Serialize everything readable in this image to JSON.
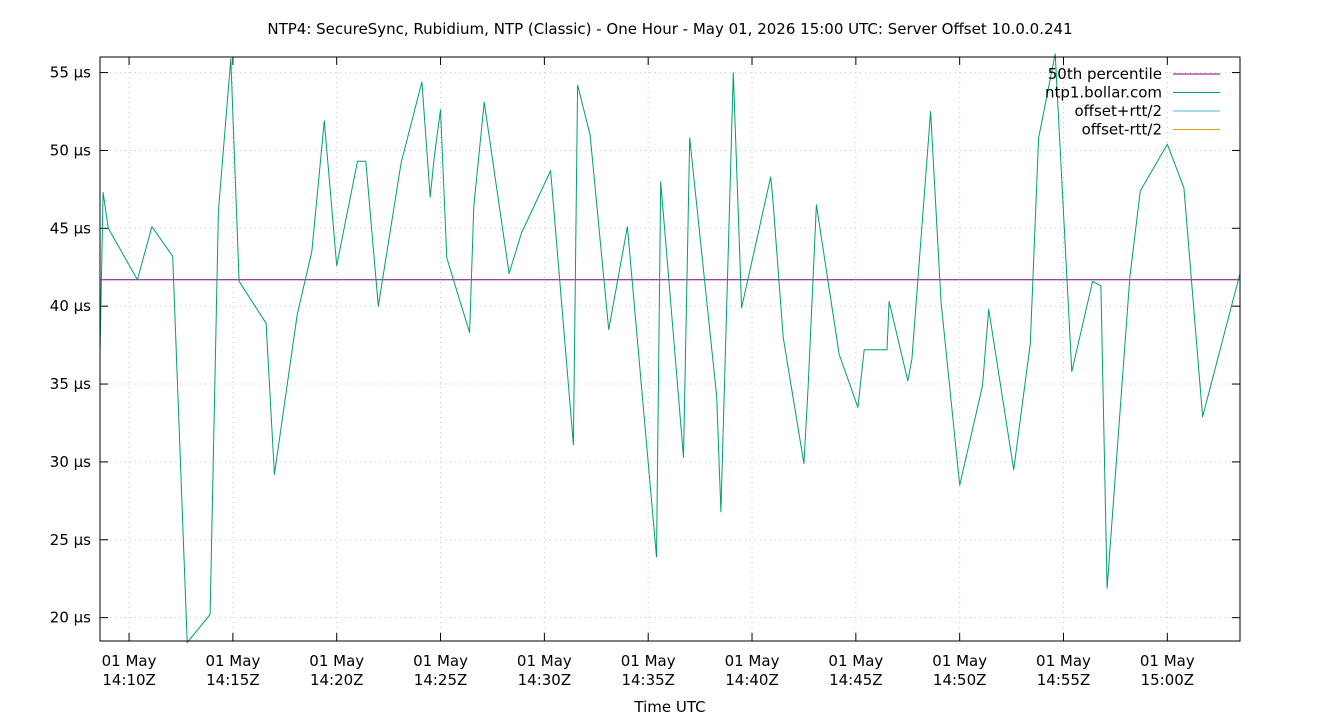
{
  "chart_data": {
    "type": "line",
    "title": "NTP4: SecureSync, Rubidium, NTP (Classic) - One Hour - May 01, 2026 15:00 UTC: Server Offset 10.0.0.241",
    "xlabel": "Time UTC",
    "ylabel": "",
    "x_unit": "minutes after 14:00Z",
    "xlim": [
      8.6,
      63.5
    ],
    "ylim": [
      18.5,
      56.0
    ],
    "grid": true,
    "legend_position": "top-right",
    "y_ticks": [
      {
        "value": 20,
        "label": "20 µs"
      },
      {
        "value": 25,
        "label": "25 µs"
      },
      {
        "value": 30,
        "label": "30 µs"
      },
      {
        "value": 35,
        "label": "35 µs"
      },
      {
        "value": 40,
        "label": "40 µs"
      },
      {
        "value": 45,
        "label": "45 µs"
      },
      {
        "value": 50,
        "label": "50 µs"
      },
      {
        "value": 55,
        "label": "55 µs"
      }
    ],
    "x_ticks": [
      {
        "value": 10,
        "date": "01 May",
        "time": "14:10Z"
      },
      {
        "value": 15,
        "date": "01 May",
        "time": "14:15Z"
      },
      {
        "value": 20,
        "date": "01 May",
        "time": "14:20Z"
      },
      {
        "value": 25,
        "date": "01 May",
        "time": "14:25Z"
      },
      {
        "value": 30,
        "date": "01 May",
        "time": "14:30Z"
      },
      {
        "value": 35,
        "date": "01 May",
        "time": "14:35Z"
      },
      {
        "value": 40,
        "date": "01 May",
        "time": "14:40Z"
      },
      {
        "value": 45,
        "date": "01 May",
        "time": "14:45Z"
      },
      {
        "value": 50,
        "date": "01 May",
        "time": "14:50Z"
      },
      {
        "value": 55,
        "date": "01 May",
        "time": "14:55Z"
      },
      {
        "value": 60,
        "date": "01 May",
        "time": "15:00Z"
      }
    ],
    "series": [
      {
        "name": "50th percentile",
        "color": "#800080",
        "x": [
          8.6,
          63.5
        ],
        "y": [
          41.7,
          41.7
        ]
      },
      {
        "name": "ntp1.bollar.com",
        "color": "#009e73",
        "x": [
          8.6,
          8.75,
          9.0,
          10.4,
          11.1,
          12.1,
          12.8,
          13.9,
          14.3,
          14.9,
          15.3,
          16.6,
          17.0,
          18.1,
          18.8,
          19.4,
          20.0,
          21.0,
          21.4,
          22.0,
          23.1,
          24.1,
          24.5,
          24.7,
          25.0,
          25.3,
          26.4,
          26.6,
          27.1,
          28.3,
          28.9,
          30.3,
          31.4,
          31.6,
          32.2,
          33.1,
          34.0,
          35.4,
          35.6,
          36.7,
          37.0,
          38.3,
          38.5,
          39.1,
          39.5,
          40.9,
          41.0,
          41.5,
          42.5,
          42.7,
          43.1,
          44.2,
          45.1,
          45.4,
          46.5,
          46.6,
          47.5,
          47.7,
          48.6,
          49.1,
          50.0,
          51.1,
          51.4,
          52.6,
          53.4,
          53.8,
          54.6,
          55.4,
          56.4,
          56.8,
          57.1,
          58.2,
          58.7,
          60.0,
          60.8,
          61.7,
          63.5
        ],
        "y": [
          37.0,
          47.3,
          45.0,
          41.7,
          45.1,
          43.2,
          18.4,
          20.2,
          46.1,
          55.9,
          41.6,
          38.9,
          29.2,
          39.5,
          43.5,
          51.9,
          42.6,
          49.3,
          49.3,
          40.0,
          49.2,
          54.4,
          47.0,
          49.6,
          52.6,
          43.1,
          38.3,
          46.4,
          53.1,
          42.1,
          44.7,
          48.7,
          31.1,
          54.2,
          51.0,
          38.5,
          45.1,
          23.9,
          48.0,
          30.3,
          50.8,
          34.2,
          26.8,
          55.0,
          39.9,
          48.3,
          46.9,
          38.0,
          29.9,
          34.8,
          46.5,
          36.9,
          33.5,
          37.2,
          37.2,
          40.3,
          35.2,
          36.6,
          52.5,
          40.3,
          28.5,
          34.9,
          39.8,
          29.5,
          37.6,
          50.8,
          56.2,
          35.8,
          41.6,
          41.3,
          21.9,
          41.9,
          47.4,
          50.4,
          47.6,
          32.9,
          42.1
        ]
      }
    ],
    "legend_only_series": [
      {
        "name": "offset+rtt/2",
        "color": "#56b4e9"
      },
      {
        "name": "offset-rtt/2",
        "color": "#e69f00"
      }
    ]
  }
}
